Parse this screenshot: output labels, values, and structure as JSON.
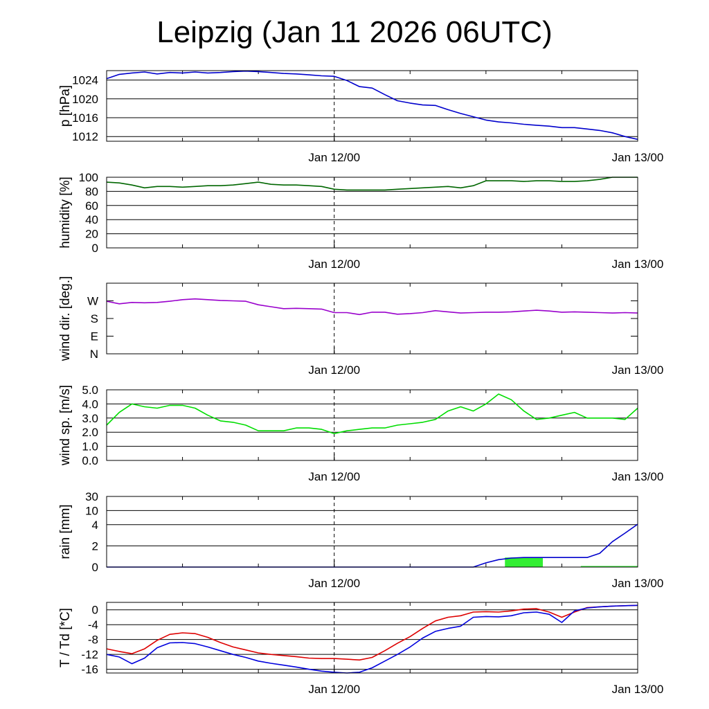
{
  "title": "Leipzig (Jan 11 2026 06UTC)",
  "chart_data": [
    {
      "type": "line",
      "ylabel": "p [hPa]",
      "x_ticks": [
        "Jan 12/00",
        "Jan 13/00"
      ],
      "x_range_hours": [
        -18,
        24
      ],
      "ylim": [
        1011,
        1026
      ],
      "yticks": [
        {
          "v": 1012,
          "label": "1012"
        },
        {
          "v": 1016,
          "label": "1016"
        },
        {
          "v": 1020,
          "label": "1020"
        },
        {
          "v": 1024,
          "label": "1024"
        }
      ],
      "grid": true,
      "series": [
        {
          "color": "#0000cc",
          "x": [
            -18,
            -17,
            -16,
            -15,
            -14,
            -13,
            -12,
            -11,
            -10,
            -9,
            -8,
            -7,
            -6,
            -5,
            -4,
            -3,
            -2,
            -1,
            0,
            1,
            2,
            3,
            4,
            5,
            6,
            7,
            8,
            9,
            10,
            11,
            12,
            13,
            14,
            15,
            16,
            17,
            18,
            19,
            20,
            21,
            22,
            23,
            24
          ],
          "y": [
            1024.3,
            1025.2,
            1025.5,
            1025.7,
            1025.3,
            1025.6,
            1025.5,
            1025.7,
            1025.5,
            1025.6,
            1025.8,
            1025.9,
            1025.8,
            1025.6,
            1025.4,
            1025.3,
            1025.1,
            1024.9,
            1024.8,
            1023.9,
            1022.6,
            1022.3,
            1020.9,
            1019.6,
            1019.1,
            1018.7,
            1018.6,
            1017.7,
            1016.9,
            1016.2,
            1015.5,
            1015.1,
            1014.9,
            1014.6,
            1014.4,
            1014.2,
            1013.9,
            1013.9,
            1013.6,
            1013.3,
            1012.8,
            1012.0,
            1011.4
          ]
        }
      ]
    },
    {
      "type": "line",
      "ylabel": "humidity [%]",
      "x_ticks": [
        "Jan 12/00",
        "Jan 13/00"
      ],
      "x_range_hours": [
        -18,
        24
      ],
      "ylim": [
        0,
        100
      ],
      "yticks": [
        {
          "v": 0,
          "label": "0"
        },
        {
          "v": 20,
          "label": "20"
        },
        {
          "v": 40,
          "label": "40"
        },
        {
          "v": 60,
          "label": "60"
        },
        {
          "v": 80,
          "label": "80"
        },
        {
          "v": 100,
          "label": "100"
        }
      ],
      "grid": true,
      "series": [
        {
          "color": "#006600",
          "x": [
            -18,
            -17,
            -16,
            -15,
            -14,
            -13,
            -12,
            -11,
            -10,
            -9,
            -8,
            -7,
            -6,
            -5,
            -4,
            -3,
            -2,
            -1,
            0,
            1,
            2,
            3,
            4,
            5,
            6,
            7,
            8,
            9,
            10,
            11,
            12,
            13,
            14,
            15,
            16,
            17,
            18,
            19,
            20,
            21,
            22,
            23,
            24
          ],
          "y": [
            93,
            92,
            89,
            85,
            87,
            87,
            86,
            87,
            88,
            88,
            89,
            91,
            93,
            90,
            89,
            89,
            88,
            87,
            83,
            82,
            82,
            82,
            82,
            83,
            84,
            85,
            86,
            87,
            85,
            88,
            95,
            95,
            95,
            94,
            95,
            95,
            94,
            94,
            95,
            97,
            100,
            100,
            100
          ]
        }
      ]
    },
    {
      "type": "line",
      "ylabel": "wind dir. [deg.]",
      "x_ticks": [
        "Jan 12/00",
        "Jan 13/00"
      ],
      "x_range_hours": [
        -18,
        24
      ],
      "ylim": [
        0,
        360
      ],
      "yticks": [
        {
          "v": 0,
          "label": "N"
        },
        {
          "v": 90,
          "label": "E"
        },
        {
          "v": 180,
          "label": "S"
        },
        {
          "v": 270,
          "label": "W"
        }
      ],
      "grid": false,
      "series": [
        {
          "color": "#9900cc",
          "x": [
            -18,
            -17,
            -16,
            -15,
            -14,
            -13,
            -12,
            -11,
            -10,
            -9,
            -8,
            -7,
            -6,
            -5,
            -4,
            -3,
            -2,
            -1,
            0,
            1,
            2,
            3,
            4,
            5,
            6,
            7,
            8,
            9,
            10,
            11,
            12,
            13,
            14,
            15,
            16,
            17,
            18,
            19,
            20,
            21,
            22,
            23,
            24
          ],
          "y": [
            268,
            255,
            262,
            260,
            262,
            268,
            276,
            280,
            276,
            272,
            270,
            268,
            250,
            240,
            230,
            232,
            230,
            228,
            210,
            210,
            200,
            212,
            212,
            202,
            205,
            210,
            220,
            214,
            208,
            210,
            212,
            212,
            214,
            218,
            222,
            218,
            212,
            214,
            212,
            210,
            208,
            210,
            208
          ]
        }
      ]
    },
    {
      "type": "line",
      "ylabel": "wind sp. [m/s]",
      "x_ticks": [
        "Jan 12/00",
        "Jan 13/00"
      ],
      "x_range_hours": [
        -18,
        24
      ],
      "ylim": [
        0,
        5
      ],
      "yticks": [
        {
          "v": 0,
          "label": "0.0"
        },
        {
          "v": 1,
          "label": "1.0"
        },
        {
          "v": 2,
          "label": "2.0"
        },
        {
          "v": 3,
          "label": "3.0"
        },
        {
          "v": 4,
          "label": "4.0"
        },
        {
          "v": 5,
          "label": "5.0"
        }
      ],
      "grid": true,
      "series": [
        {
          "color": "#00dd00",
          "x": [
            -18,
            -17,
            -16,
            -15,
            -14,
            -13,
            -12,
            -11,
            -10,
            -9,
            -8,
            -7,
            -6,
            -5,
            -4,
            -3,
            -2,
            -1,
            0,
            1,
            2,
            3,
            4,
            5,
            6,
            7,
            8,
            9,
            10,
            11,
            12,
            13,
            14,
            15,
            16,
            17,
            18,
            19,
            20,
            21,
            22,
            23,
            24
          ],
          "y": [
            2.5,
            3.4,
            4.0,
            3.8,
            3.7,
            3.9,
            3.9,
            3.7,
            3.2,
            2.8,
            2.7,
            2.5,
            2.1,
            2.1,
            2.1,
            2.3,
            2.3,
            2.2,
            1.9,
            2.1,
            2.2,
            2.3,
            2.3,
            2.5,
            2.6,
            2.7,
            2.9,
            3.5,
            3.8,
            3.5,
            4.0,
            4.7,
            4.3,
            3.5,
            2.9,
            3.0,
            3.2,
            3.4,
            3.0,
            3.0,
            3.0,
            2.9,
            3.7
          ]
        }
      ]
    },
    {
      "type": "line",
      "ylabel": "rain [mm]",
      "x_ticks": [
        "Jan 12/00",
        "Jan 13/00"
      ],
      "x_range_hours": [
        -18,
        24
      ],
      "yticks": [
        {
          "v": 0,
          "label": "0"
        },
        {
          "v": 2,
          "label": "2"
        },
        {
          "v": 4,
          "label": "4"
        },
        {
          "v": 10,
          "label": "10"
        },
        {
          "v": 30,
          "label": "30"
        }
      ],
      "grid": true,
      "bars": {
        "color": "#33ee33",
        "items": [
          {
            "x0": 13.5,
            "x1": 16.5,
            "value": 0.9
          },
          {
            "x0": 19.5,
            "x1": 24,
            "value": 0.1
          }
        ]
      },
      "series": [
        {
          "color": "#0000cc",
          "x": [
            -18,
            11,
            12,
            13,
            14,
            15,
            16,
            17,
            18,
            19,
            20,
            21,
            22,
            23,
            24
          ],
          "y": [
            0,
            0,
            0.4,
            0.7,
            0.85,
            0.9,
            0.9,
            0.9,
            0.9,
            0.9,
            0.9,
            1.3,
            2.4,
            3.2,
            4.2
          ]
        }
      ]
    },
    {
      "type": "line",
      "ylabel": "T / Td [*C]",
      "x_ticks": [
        "Jan 12/00",
        "Jan 13/00"
      ],
      "x_range_hours": [
        -18,
        24
      ],
      "ylim": [
        -17,
        2
      ],
      "yticks": [
        {
          "v": -16,
          "label": "-16"
        },
        {
          "v": -12,
          "label": "-12"
        },
        {
          "v": -8,
          "label": "-8"
        },
        {
          "v": -4,
          "label": "-4"
        },
        {
          "v": 0,
          "label": "0"
        }
      ],
      "grid": true,
      "series": [
        {
          "color": "#dd0000",
          "x": [
            -18,
            -17,
            -16,
            -15,
            -14,
            -13,
            -12,
            -11,
            -10,
            -9,
            -8,
            -7,
            -6,
            -5,
            -4,
            -3,
            -2,
            -1,
            0,
            1,
            2,
            3,
            4,
            5,
            6,
            7,
            8,
            9,
            10,
            11,
            12,
            13,
            14,
            15,
            16,
            17,
            18,
            19,
            20,
            21,
            22,
            23,
            24
          ],
          "y": [
            -10.5,
            -11.2,
            -11.8,
            -10.5,
            -8.2,
            -6.6,
            -6.2,
            -6.4,
            -7.4,
            -8.8,
            -10.0,
            -10.8,
            -11.6,
            -12.0,
            -12.3,
            -12.6,
            -13.0,
            -13.1,
            -13.1,
            -13.3,
            -13.5,
            -12.8,
            -11.0,
            -9.0,
            -7.2,
            -5.0,
            -3.0,
            -2.0,
            -1.6,
            -0.6,
            -0.5,
            -0.6,
            -0.3,
            0.2,
            0.3,
            -0.6,
            -2.0,
            -0.6,
            0.6,
            0.8,
            1.0,
            1.1,
            1.2
          ]
        },
        {
          "color": "#0000dd",
          "x": [
            -18,
            -17,
            -16,
            -15,
            -14,
            -13,
            -12,
            -11,
            -10,
            -9,
            -8,
            -7,
            -6,
            -5,
            -4,
            -3,
            -2,
            -1,
            0,
            1,
            2,
            3,
            4,
            5,
            6,
            7,
            8,
            9,
            10,
            11,
            12,
            13,
            14,
            15,
            16,
            17,
            18,
            19,
            20,
            21,
            22,
            23,
            24
          ],
          "y": [
            -12.0,
            -12.7,
            -14.5,
            -13.0,
            -10.2,
            -8.9,
            -8.8,
            -9.1,
            -10.0,
            -11.0,
            -12.0,
            -12.8,
            -13.8,
            -14.4,
            -14.9,
            -15.4,
            -16.0,
            -16.5,
            -16.8,
            -17.0,
            -16.8,
            -15.6,
            -13.8,
            -12.0,
            -10.0,
            -7.6,
            -5.8,
            -5.0,
            -4.4,
            -2.0,
            -1.8,
            -1.9,
            -1.6,
            -0.8,
            -0.6,
            -1.2,
            -3.4,
            -0.3,
            0.5,
            0.8,
            1.0,
            1.1,
            1.2
          ]
        }
      ]
    }
  ]
}
